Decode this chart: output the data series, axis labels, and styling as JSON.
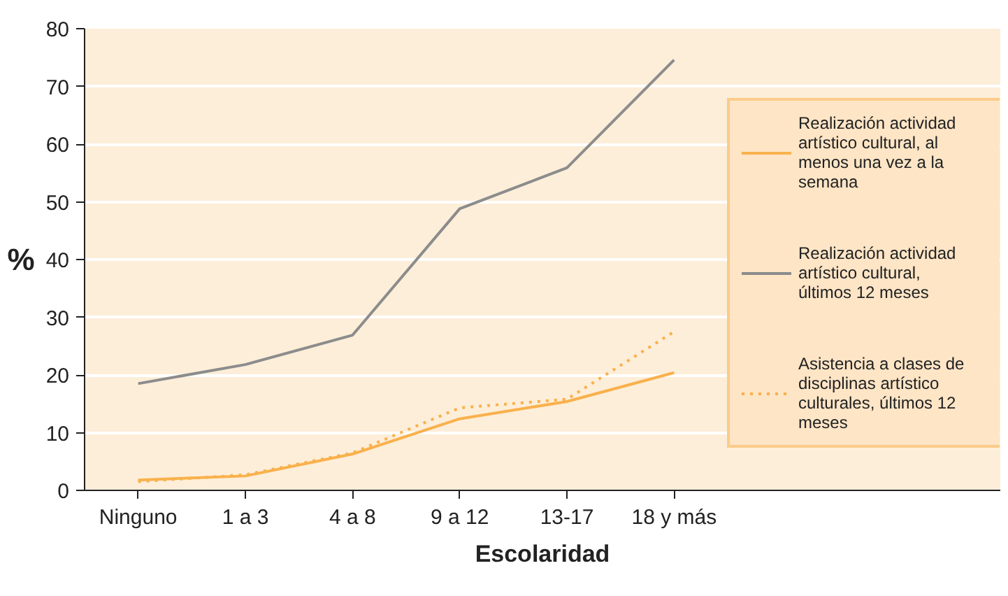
{
  "chart_data": {
    "type": "line",
    "xlabel": "Escolaridad",
    "ylabel": "%",
    "categories": [
      "Ninguno",
      "1 a 3",
      "4 a 8",
      "9 a 12",
      "13-17",
      "18 y más"
    ],
    "ylim": [
      0,
      80
    ],
    "yticks": [
      0,
      10,
      20,
      30,
      40,
      50,
      60,
      70,
      80
    ],
    "grid": "y",
    "legend": "right",
    "series": [
      {
        "name": "Realización actividad artístico cultural, al menos una vez a la semana",
        "color": "#f9b14c",
        "line_style": "solid",
        "values": [
          1.8,
          2.5,
          6.3,
          12.4,
          15.4,
          20.4
        ]
      },
      {
        "name": "Realización actividad artístico cultural, últimos 12 meses",
        "color": "#8c8c8c",
        "line_style": "solid",
        "values": [
          18.5,
          21.8,
          26.9,
          48.8,
          55.9,
          74.6
        ]
      },
      {
        "name": "Asistencia a clases de disciplinas artístico culturales, últimos 12 meses",
        "color": "#f9b14c",
        "line_style": "dotted",
        "values": [
          1.5,
          2.7,
          6.5,
          14.3,
          15.8,
          27.5
        ]
      }
    ]
  }
}
